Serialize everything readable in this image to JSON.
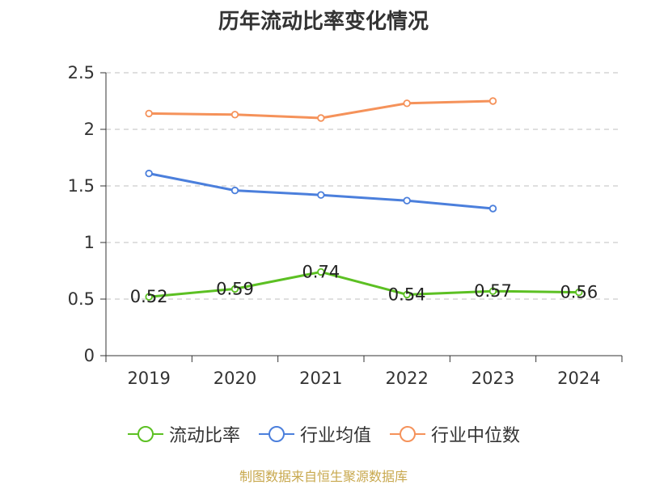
{
  "chart_data": {
    "type": "line",
    "title": "历年流动比率变化情况",
    "categories": [
      "2019",
      "2020",
      "2021",
      "2022",
      "2023",
      "2024"
    ],
    "ylim": [
      0,
      2.5
    ],
    "yticks": [
      "0",
      "0.5",
      "1",
      "1.5",
      "2",
      "2.5"
    ],
    "grid": true,
    "legend_position": "bottom",
    "series": [
      {
        "name": "流动比率",
        "color": "#5cc023",
        "values": [
          0.52,
          0.59,
          0.74,
          0.54,
          0.57,
          0.56
        ],
        "labels": [
          "0.52",
          "0.59",
          "0.74",
          "0.54",
          "0.57",
          "0.56"
        ]
      },
      {
        "name": "行业均值",
        "color": "#4b7fdc",
        "values": [
          1.61,
          1.46,
          1.42,
          1.37,
          1.3,
          null
        ]
      },
      {
        "name": "行业中位数",
        "color": "#f5925a",
        "values": [
          2.14,
          2.13,
          2.1,
          2.23,
          2.25,
          null
        ]
      }
    ]
  },
  "source": "制图数据来自恒生聚源数据库"
}
